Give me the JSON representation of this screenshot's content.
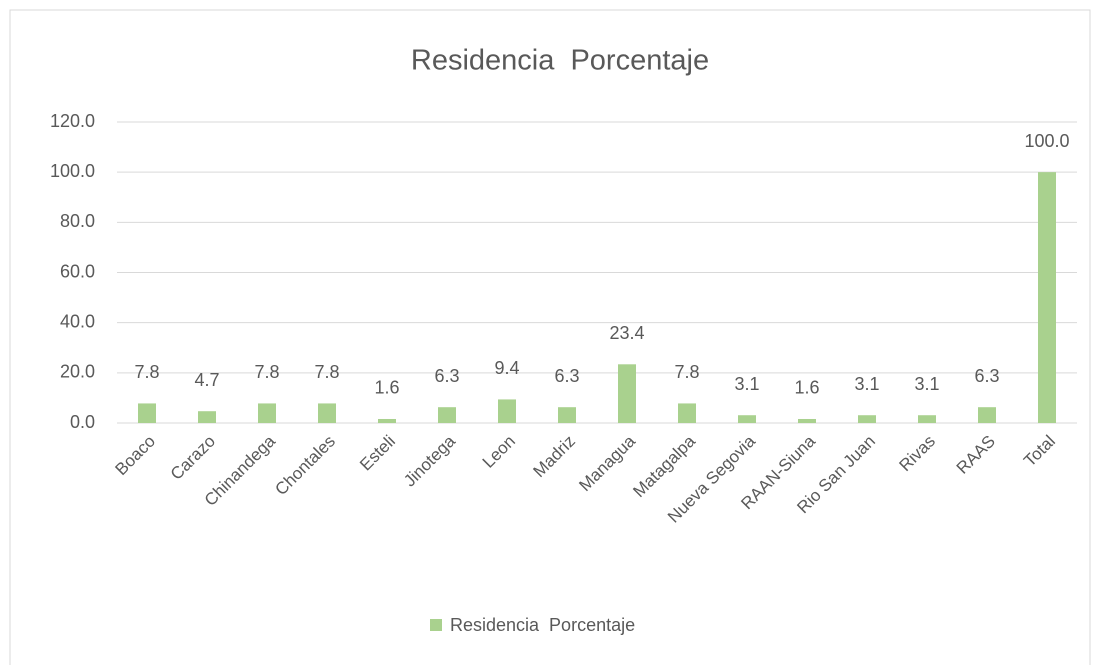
{
  "chart_data": {
    "type": "bar",
    "title": "Residencia  Porcentaje",
    "categories": [
      "Boaco",
      "Carazo",
      "Chinandega",
      "Chontales",
      "Esteli",
      "Jinotega",
      "Leon",
      "Madriz",
      "Managua",
      "Matagalpa",
      "Nueva Segovia",
      "RAAN-Siuna",
      "Rio San Juan",
      "Rivas",
      "RAAS",
      "Total"
    ],
    "series": [
      {
        "name": "Residencia  Porcentaje",
        "color": "#a9d18e",
        "values": [
          7.8,
          4.7,
          7.8,
          7.8,
          1.6,
          6.3,
          9.4,
          6.3,
          23.4,
          7.8,
          3.1,
          1.6,
          3.1,
          3.1,
          6.3,
          100.0
        ],
        "value_labels": [
          "7.8",
          "4.7",
          "7.8",
          "7.8",
          "1.6",
          "6.3",
          "9.4",
          "6.3",
          "23.4",
          "7.8",
          "3.1",
          "1.6",
          "3.1",
          "3.1",
          "6.3",
          "100.0"
        ]
      }
    ],
    "ylim": [
      0,
      120
    ],
    "yticks": [
      {
        "value": 0,
        "label": "0.0"
      },
      {
        "value": 20,
        "label": "20.0"
      },
      {
        "value": 40,
        "label": "40.0"
      },
      {
        "value": 60,
        "label": "60.0"
      },
      {
        "value": 80,
        "label": "80.0"
      },
      {
        "value": 100,
        "label": "100.0"
      },
      {
        "value": 120,
        "label": "120.0"
      }
    ],
    "grid": true,
    "legend": "bottom"
  }
}
